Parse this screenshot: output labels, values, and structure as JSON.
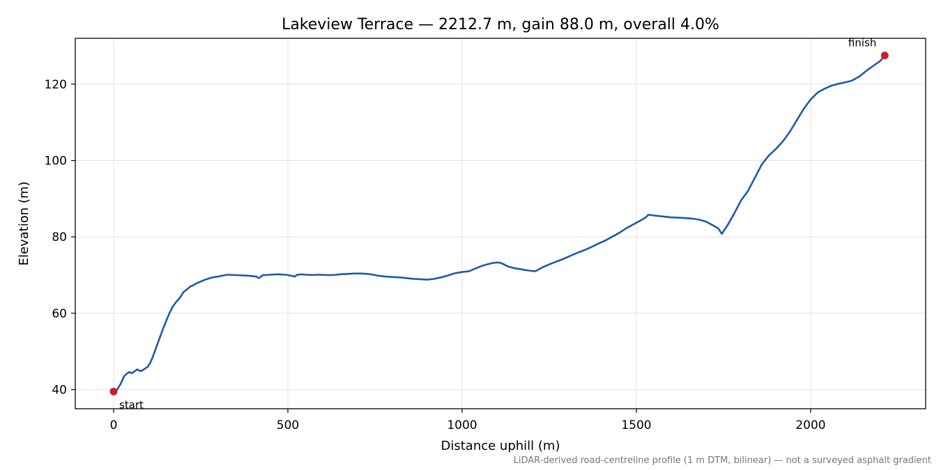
{
  "chart_data": {
    "type": "line",
    "title": "Lakeview Terrace — 2212.7 m, gain 88.0 m, overall 4.0%",
    "xlabel": "Distance uphill (m)",
    "ylabel": "Elevation (m)",
    "xlim": [
      -110,
      2330
    ],
    "ylim": [
      35,
      132
    ],
    "xticks": [
      0,
      500,
      1000,
      1500,
      2000
    ],
    "yticks": [
      40,
      60,
      80,
      100,
      120
    ],
    "grid": true,
    "footnote": "LiDAR-derived road-centreline profile (1 m DTM, bilinear) — not a surveyed asphalt gradient",
    "colors": {
      "line": "#1f5aa6",
      "marker": "#c81e2a",
      "grid": "#e0e0e0"
    },
    "series": [
      {
        "x": [
          0,
          10,
          20,
          30,
          38,
          45,
          52,
          60,
          68,
          75,
          82,
          90,
          98,
          105,
          112,
          120,
          130,
          140,
          150,
          160,
          170,
          180,
          190,
          200,
          210,
          220,
          228,
          235,
          242,
          250,
          260,
          270,
          280,
          290,
          300,
          310,
          320,
          330,
          340,
          350,
          370,
          390,
          400,
          410,
          415,
          420,
          425,
          430,
          440,
          450,
          470,
          490,
          500,
          510,
          520,
          525,
          530,
          540,
          550,
          570,
          590,
          610,
          630,
          650,
          670,
          690,
          710,
          730,
          750,
          760,
          780,
          800,
          820,
          840,
          860,
          880,
          900,
          920,
          940,
          960,
          980,
          1000,
          1020,
          1040,
          1060,
          1080,
          1090,
          1100,
          1110,
          1120,
          1130,
          1150,
          1170,
          1190,
          1210,
          1230,
          1250,
          1270,
          1290,
          1310,
          1330,
          1350,
          1370,
          1390,
          1410,
          1430,
          1450,
          1470,
          1490,
          1510,
          1525,
          1535,
          1550,
          1570,
          1600,
          1630,
          1660,
          1680,
          1700,
          1720,
          1735,
          1745,
          1760,
          1780,
          1800,
          1820,
          1840,
          1860,
          1880,
          1900,
          1920,
          1940,
          1960,
          1980,
          2000,
          2020,
          2040,
          2060,
          2080,
          2100,
          2110,
          2120,
          2140,
          2160,
          2180,
          2200,
          2212.7
        ],
        "y": [
          39.5,
          40,
          41.5,
          43.5,
          44.2,
          44.6,
          44.3,
          44.8,
          45.3,
          44.9,
          45.0,
          45.5,
          46.0,
          47.0,
          48.5,
          50.5,
          53.0,
          55.5,
          57.8,
          60.0,
          61.8,
          63.0,
          64.0,
          65.5,
          66.2,
          67.0,
          67.3,
          67.7,
          68.0,
          68.3,
          68.7,
          69.0,
          69.3,
          69.5,
          69.6,
          69.8,
          70.0,
          70.1,
          70.0,
          70.0,
          69.9,
          69.8,
          69.7,
          69.6,
          69.2,
          69.4,
          69.8,
          70.0,
          70.0,
          70.1,
          70.2,
          70.1,
          70.0,
          69.8,
          69.6,
          70.0,
          70.1,
          70.2,
          70.1,
          70.0,
          70.1,
          70.0,
          70.0,
          70.2,
          70.3,
          70.4,
          70.4,
          70.3,
          70.0,
          69.8,
          69.6,
          69.5,
          69.4,
          69.2,
          69.0,
          68.9,
          68.8,
          69.0,
          69.4,
          69.9,
          70.5,
          70.8,
          71.0,
          71.8,
          72.5,
          73.0,
          73.2,
          73.3,
          73.2,
          72.8,
          72.3,
          71.8,
          71.5,
          71.2,
          71.0,
          72.0,
          72.8,
          73.5,
          74.2,
          75.0,
          75.8,
          76.5,
          77.3,
          78.2,
          79.0,
          80.0,
          81.0,
          82.2,
          83.2,
          84.2,
          85.0,
          85.8,
          85.6,
          85.4,
          85.1,
          85.0,
          84.8,
          84.5,
          84.0,
          83.0,
          82.2,
          80.8,
          82.8,
          86.0,
          89.5,
          92.0,
          95.5,
          99.0,
          101.3,
          103.0,
          105.0,
          107.5,
          110.5,
          113.5,
          116.0,
          117.8,
          118.8,
          119.6,
          120.1,
          120.5,
          120.7,
          121.0,
          122.0,
          123.5,
          124.8,
          126.1,
          127.5
        ]
      }
    ],
    "annotations": [
      {
        "label": "start",
        "x": 0,
        "y": 39.5
      },
      {
        "label": "finish",
        "x": 2212.7,
        "y": 127.5
      }
    ]
  }
}
